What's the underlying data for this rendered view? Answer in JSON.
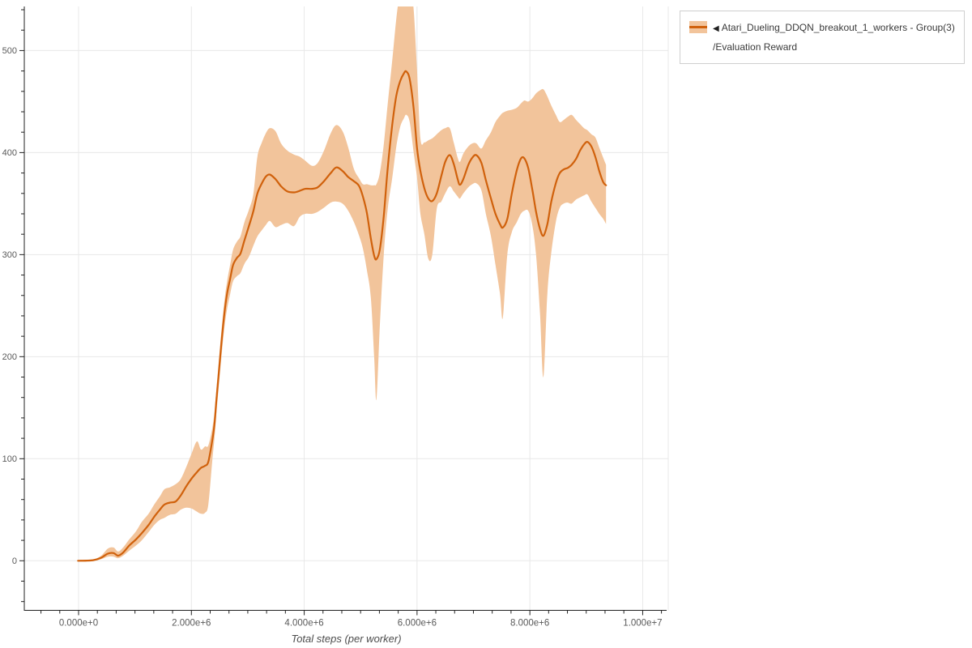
{
  "legend": {
    "collapse_arrow": "◀",
    "series_label": "Atari_Dueling_DDQN_breakout_1_workers - Group(3)",
    "metric_label": "/Evaluation Reward"
  },
  "colors": {
    "line": "#d0610c",
    "band": "#f2c49b",
    "grid": "#e8e8e8",
    "spine": "#222222",
    "tick_label": "#595959",
    "axis_title": "#4d4d4d",
    "legend_border": "#cfcfcf"
  },
  "chart_data": {
    "type": "line",
    "title": "",
    "xlabel": "Total steps (per worker)",
    "ylabel": "",
    "x_unit": "millions of steps",
    "xlim": [
      -0.962,
      10.453
    ],
    "ylim": [
      -48.6,
      543.2
    ],
    "grid": true,
    "legend_position": "top-right",
    "x_ticks": [
      {
        "label": "0.000e+0",
        "value": 0
      },
      {
        "label": "2.000e+6",
        "value": 2
      },
      {
        "label": "4.000e+6",
        "value": 4
      },
      {
        "label": "6.000e+6",
        "value": 6
      },
      {
        "label": "8.000e+6",
        "value": 8
      },
      {
        "label": "1.000e+7",
        "value": 10
      }
    ],
    "x_minor_step": 0.3333,
    "y_ticks": [
      {
        "label": "0",
        "value": 0
      },
      {
        "label": "100",
        "value": 100
      },
      {
        "label": "200",
        "value": 200
      },
      {
        "label": "300",
        "value": 300
      },
      {
        "label": "400",
        "value": 400
      },
      {
        "label": "500",
        "value": 500
      }
    ],
    "y_minor_step": 20,
    "series": [
      {
        "name": "Atari_Dueling_DDQN_breakout_1_workers - Group(3)/Evaluation Reward",
        "kind": "mean_with_band",
        "points": [
          [
            -0.01,
            0,
            -0.5,
            0.5
          ],
          [
            0.26,
            0.5,
            0,
            1.5
          ],
          [
            0.4,
            3,
            1.5,
            5
          ],
          [
            0.52,
            7,
            4,
            12
          ],
          [
            0.62,
            7.5,
            4,
            13
          ],
          [
            0.7,
            5,
            2.5,
            9
          ],
          [
            0.79,
            8,
            5,
            13
          ],
          [
            0.9,
            15,
            10,
            21
          ],
          [
            1.02,
            21,
            15,
            29
          ],
          [
            1.12,
            27,
            20,
            38
          ],
          [
            1.24,
            35,
            28,
            46
          ],
          [
            1.34,
            43,
            35,
            55
          ],
          [
            1.44,
            50,
            40,
            63
          ],
          [
            1.52,
            55,
            42,
            70
          ],
          [
            1.62,
            57,
            45,
            72
          ],
          [
            1.72,
            58,
            46,
            75
          ],
          [
            1.81,
            64,
            50,
            80
          ],
          [
            1.91,
            73,
            52,
            92
          ],
          [
            2.01,
            81,
            51,
            106
          ],
          [
            2.1,
            87,
            48,
            117
          ],
          [
            2.17,
            91,
            46,
            109
          ],
          [
            2.24,
            93,
            47,
            112
          ],
          [
            2.3,
            97,
            55,
            113
          ],
          [
            2.37,
            118,
            98,
            130
          ],
          [
            2.41,
            134,
            120,
            146
          ],
          [
            2.44,
            155,
            142,
            166
          ],
          [
            2.48,
            180,
            167,
            192
          ],
          [
            2.53,
            212,
            198,
            224
          ],
          [
            2.58,
            240,
            226,
            252
          ],
          [
            2.63,
            261,
            246,
            273
          ],
          [
            2.69,
            277,
            262,
            291
          ],
          [
            2.74,
            290,
            274,
            305
          ],
          [
            2.81,
            297,
            279,
            313
          ],
          [
            2.87,
            301,
            282,
            318
          ],
          [
            2.94,
            314,
            291,
            332
          ],
          [
            3.02,
            328,
            298,
            344
          ],
          [
            3.1,
            343,
            309,
            360
          ],
          [
            3.17,
            360,
            318,
            396
          ],
          [
            3.25,
            370,
            324,
            410
          ],
          [
            3.32,
            376.5,
            329,
            419
          ],
          [
            3.39,
            378.5,
            333,
            424
          ],
          [
            3.49,
            374,
            327,
            421
          ],
          [
            3.59,
            367,
            329,
            409
          ],
          [
            3.7,
            362,
            331,
            402
          ],
          [
            3.82,
            361,
            328,
            398
          ],
          [
            3.92,
            362.5,
            337,
            396
          ],
          [
            4.02,
            364.5,
            340,
            392
          ],
          [
            4.14,
            364.5,
            340,
            387
          ],
          [
            4.24,
            366,
            342,
            390
          ],
          [
            4.35,
            372,
            346,
            402
          ],
          [
            4.47,
            380,
            351,
            419
          ],
          [
            4.57,
            385.5,
            352,
            427
          ],
          [
            4.68,
            382,
            350,
            421
          ],
          [
            4.78,
            376,
            343,
            405
          ],
          [
            4.88,
            372,
            332,
            384
          ],
          [
            4.97,
            367.5,
            319,
            375
          ],
          [
            5.04,
            357,
            306,
            369
          ],
          [
            5.11,
            341,
            285,
            369
          ],
          [
            5.18,
            316,
            258,
            368
          ],
          [
            5.24,
            299,
            200,
            368
          ],
          [
            5.28,
            295.5,
            158,
            369
          ],
          [
            5.34,
            305,
            230,
            380
          ],
          [
            5.41,
            338,
            300,
            408
          ],
          [
            5.48,
            385,
            345,
            448
          ],
          [
            5.56,
            427,
            375,
            490
          ],
          [
            5.63,
            455,
            405,
            530
          ],
          [
            5.7,
            470,
            425,
            560
          ],
          [
            5.77,
            478,
            434,
            580
          ],
          [
            5.81,
            479.5,
            437,
            585
          ],
          [
            5.87,
            472,
            430,
            570
          ],
          [
            5.94,
            443,
            400,
            540
          ],
          [
            6.0,
            404,
            375,
            480
          ],
          [
            6.06,
            382,
            340,
            414
          ],
          [
            6.13,
            365,
            320,
            410
          ],
          [
            6.2,
            355,
            296,
            412
          ],
          [
            6.27,
            352.5,
            300,
            414
          ],
          [
            6.35,
            360,
            345,
            418
          ],
          [
            6.43,
            377,
            352,
            422
          ],
          [
            6.5,
            391,
            360,
            424
          ],
          [
            6.58,
            397.5,
            367,
            424
          ],
          [
            6.65,
            389,
            362,
            410
          ],
          [
            6.72,
            374,
            357,
            395
          ],
          [
            6.76,
            368.5,
            355,
            391
          ],
          [
            6.82,
            374,
            360,
            399
          ],
          [
            6.91,
            388,
            366,
            406
          ],
          [
            6.98,
            395,
            369,
            409
          ],
          [
            7.05,
            397.5,
            370,
            409
          ],
          [
            7.14,
            390,
            363,
            404
          ],
          [
            7.22,
            373,
            340,
            412
          ],
          [
            7.31,
            355,
            318,
            420
          ],
          [
            7.39,
            340,
            290,
            430
          ],
          [
            7.47,
            330,
            262,
            436
          ],
          [
            7.52,
            326.5,
            238,
            439
          ],
          [
            7.6,
            335,
            300,
            441
          ],
          [
            7.68,
            360,
            322,
            442
          ],
          [
            7.77,
            383,
            332,
            444
          ],
          [
            7.84,
            394,
            340,
            448
          ],
          [
            7.9,
            394.5,
            343,
            451
          ],
          [
            7.97,
            385,
            343,
            450
          ],
          [
            8.04,
            365,
            330,
            453
          ],
          [
            8.11,
            342,
            300,
            458
          ],
          [
            8.18,
            325,
            242,
            461
          ],
          [
            8.24,
            318.5,
            180,
            462
          ],
          [
            8.31,
            330,
            262,
            455
          ],
          [
            8.38,
            352,
            302,
            446
          ],
          [
            8.46,
            370,
            332,
            437
          ],
          [
            8.53,
            380,
            346,
            430
          ],
          [
            8.6,
            383.5,
            350,
            432
          ],
          [
            8.67,
            385,
            351,
            435
          ],
          [
            8.74,
            388,
            350,
            437
          ],
          [
            8.82,
            394,
            354,
            432
          ],
          [
            8.89,
            402,
            356,
            428
          ],
          [
            8.96,
            408,
            358,
            424
          ],
          [
            9.02,
            410.5,
            359,
            422
          ],
          [
            9.09,
            406,
            352,
            418
          ],
          [
            9.16,
            396,
            346,
            415
          ],
          [
            9.23,
            382,
            340,
            405
          ],
          [
            9.3,
            371,
            335,
            395
          ],
          [
            9.35,
            368,
            330,
            388
          ]
        ]
      }
    ]
  }
}
